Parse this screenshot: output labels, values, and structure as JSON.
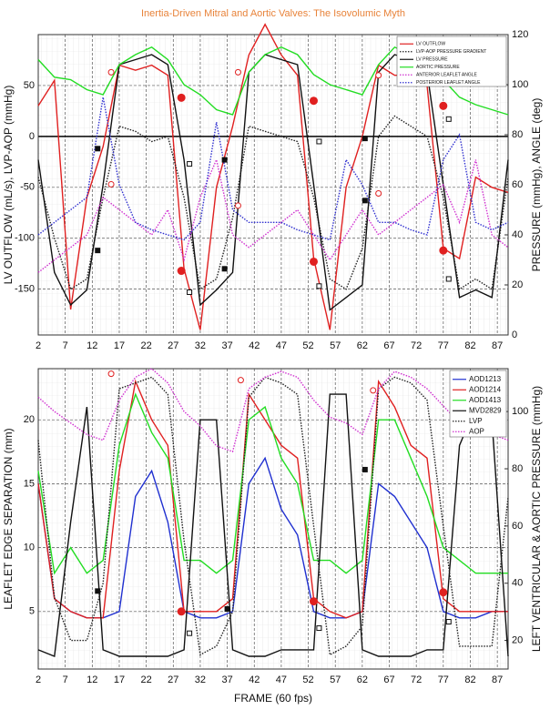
{
  "chart_data": [
    {
      "type": "line",
      "title": "Inertia-Driven Mitral and Aortic Valves: The Isovolumic Myth",
      "ylabel": "LV OUTFLOW (mL/s), LVP-AOP (mmHg)",
      "y2label": "PRESSURE (mmHg),  ANGLE (deg)",
      "xlim": [
        2,
        89
      ],
      "xticks": [
        2,
        7,
        12,
        17,
        22,
        27,
        32,
        37,
        42,
        47,
        52,
        57,
        62,
        67,
        72,
        77,
        82,
        87
      ],
      "ylim": [
        -195,
        100
      ],
      "yticks": [
        -150,
        -100,
        -50,
        0,
        50
      ],
      "y2lim": [
        0,
        120
      ],
      "y2ticks": [
        0,
        20,
        40,
        60,
        80,
        100,
        120
      ],
      "grid": true,
      "legend": "upper right",
      "x": [
        2,
        5,
        8,
        11,
        14,
        17,
        20,
        23,
        26,
        29,
        32,
        35,
        38,
        41,
        44,
        47,
        50,
        53,
        56,
        59,
        62,
        65,
        68,
        71,
        74,
        77,
        80,
        83,
        86,
        89
      ],
      "series": [
        {
          "name": "LV OUTFLOW",
          "color": "#e02020",
          "linestyle": "solid",
          "axis": "y",
          "values": [
            30,
            55,
            -170,
            -60,
            -10,
            70,
            65,
            70,
            60,
            -130,
            -190,
            -50,
            10,
            80,
            110,
            80,
            60,
            -120,
            -190,
            -50,
            0,
            70,
            60,
            60,
            50,
            -110,
            -120,
            -40,
            -50,
            -55
          ]
        },
        {
          "name": "LVP-AOP PRESSURE GRADIENT",
          "color": "#222222",
          "linestyle": "dotted",
          "axis": "y",
          "values": [
            -40,
            -100,
            -150,
            -140,
            -60,
            10,
            5,
            -5,
            0,
            -60,
            -150,
            -140,
            -80,
            10,
            5,
            0,
            -5,
            -60,
            -140,
            -150,
            -110,
            0,
            20,
            10,
            0,
            -60,
            -150,
            -140,
            -150,
            -40
          ]
        },
        {
          "name": "LV PRESSURE",
          "color": "#111111",
          "linestyle": "solid",
          "axis": "y2",
          "values": [
            70,
            25,
            12,
            18,
            60,
            108,
            110,
            112,
            108,
            70,
            12,
            18,
            25,
            105,
            112,
            110,
            108,
            60,
            10,
            15,
            20,
            105,
            112,
            110,
            105,
            60,
            15,
            18,
            15,
            70
          ]
        },
        {
          "name": "AORTIC PRESSURE",
          "color": "#22dd22",
          "linestyle": "solid",
          "axis": "y2",
          "values": [
            110,
            103,
            102,
            98,
            96,
            108,
            112,
            115,
            110,
            100,
            96,
            90,
            88,
            105,
            112,
            115,
            112,
            104,
            100,
            98,
            96,
            108,
            115,
            112,
            108,
            102,
            95,
            92,
            90,
            88
          ]
        },
        {
          "name": "ANTERIOR LEAFLET ANGLE",
          "color": "#d030d0",
          "linestyle": "dotted",
          "axis": "y2",
          "values": [
            25,
            30,
            35,
            40,
            55,
            50,
            45,
            40,
            50,
            30,
            55,
            70,
            40,
            35,
            40,
            45,
            50,
            40,
            30,
            40,
            50,
            40,
            45,
            50,
            55,
            60,
            45,
            70,
            40,
            35
          ]
        },
        {
          "name": "POSTERIOR LEAFLET ANGLE",
          "color": "#3030d0",
          "linestyle": "dotted",
          "axis": "y2",
          "values": [
            40,
            45,
            50,
            55,
            95,
            60,
            45,
            42,
            40,
            38,
            45,
            85,
            50,
            45,
            45,
            45,
            42,
            40,
            38,
            70,
            60,
            45,
            45,
            42,
            40,
            70,
            80,
            45,
            42,
            45
          ]
        }
      ],
      "markers": [
        {
          "shape": "circle",
          "filled": true,
          "color": "#e02020",
          "x": [
            28.5,
            28.5,
            53,
            53,
            77,
            77
          ],
          "values": [
            38,
            -132,
            35,
            -123,
            30,
            -112
          ]
        },
        {
          "shape": "circle",
          "filled": false,
          "color": "#e02020",
          "x": [
            15.5,
            15.5,
            39,
            39,
            65,
            65
          ],
          "values": [
            63,
            -47,
            63,
            -68,
            60,
            -56
          ]
        },
        {
          "shape": "square",
          "filled": true,
          "color": "#111111",
          "x": [
            13,
            13,
            36.5,
            36.5,
            62.5,
            62.5
          ],
          "values": [
            -12,
            -112,
            -23,
            -130,
            -2,
            -63
          ]
        },
        {
          "shape": "square",
          "filled": false,
          "color": "#111111",
          "x": [
            30,
            30,
            54,
            54,
            78,
            78
          ],
          "values": [
            -27,
            -153,
            -5,
            -147,
            17,
            -140
          ]
        }
      ]
    },
    {
      "type": "line",
      "xlabel": "FRAME (60 fps)",
      "ylabel": "LEAFLET EDGE SEPARATION (mm)",
      "y2label": "LEFT VENTRICULAR & AORTIC PRESSURE (mmHg)",
      "xlim": [
        2,
        89
      ],
      "xticks": [
        2,
        7,
        12,
        17,
        22,
        27,
        32,
        37,
        42,
        47,
        52,
        57,
        62,
        67,
        72,
        77,
        82,
        87
      ],
      "ylim": [
        0.5,
        24
      ],
      "yticks": [
        5,
        10,
        15,
        20
      ],
      "y2lim": [
        10,
        115
      ],
      "y2ticks": [
        20,
        40,
        60,
        80,
        100
      ],
      "grid": true,
      "legend": "upper right",
      "x": [
        2,
        5,
        8,
        11,
        14,
        17,
        20,
        23,
        26,
        29,
        32,
        35,
        38,
        41,
        44,
        47,
        50,
        53,
        56,
        59,
        62,
        65,
        68,
        71,
        74,
        77,
        80,
        83,
        86,
        89
      ],
      "series": [
        {
          "name": "AOD1213",
          "color": "#2030d0",
          "linestyle": "solid",
          "axis": "y",
          "values": [
            15,
            6,
            5,
            4.5,
            4.5,
            5,
            14,
            16,
            12,
            5,
            4.5,
            4.5,
            5,
            15,
            17,
            13,
            11,
            5,
            4.5,
            4.5,
            5,
            15,
            14,
            12,
            10,
            5,
            4.5,
            4.5,
            5,
            5
          ]
        },
        {
          "name": "AOD1214",
          "color": "#e02020",
          "linestyle": "solid",
          "axis": "y",
          "values": [
            15,
            6,
            5,
            4.5,
            4.5,
            16,
            23,
            20,
            18,
            5,
            5,
            5,
            6,
            22,
            20,
            18,
            17,
            6,
            5,
            4.5,
            5,
            23,
            21,
            18,
            17,
            6,
            5,
            5,
            5,
            5
          ]
        },
        {
          "name": "AOD1413",
          "color": "#22dd22",
          "linestyle": "solid",
          "axis": "y",
          "values": [
            16,
            8,
            10,
            8,
            9,
            18,
            22,
            19,
            17,
            9,
            9,
            8,
            9,
            20,
            21,
            17,
            15,
            9,
            9,
            8,
            9,
            20,
            20,
            17,
            14,
            10,
            9,
            8,
            8,
            8
          ]
        },
        {
          "name": "MVD2829",
          "color": "#111111",
          "linestyle": "solid",
          "axis": "y",
          "values": [
            2,
            1.5,
            12,
            21,
            2,
            1.5,
            1.5,
            1.5,
            1.5,
            2,
            20,
            20,
            2,
            1.5,
            1.5,
            2,
            2,
            2,
            22,
            22,
            2,
            1.5,
            1.5,
            1.5,
            2,
            2,
            18,
            21,
            20,
            1.5
          ]
        },
        {
          "name": "LVP",
          "color": "#222222",
          "linestyle": "dotted",
          "axis": "y2",
          "values": [
            90,
            35,
            20,
            20,
            40,
            108,
            110,
            112,
            106,
            55,
            15,
            18,
            30,
            105,
            112,
            110,
            106,
            60,
            15,
            18,
            25,
            108,
            112,
            110,
            104,
            60,
            18,
            18,
            18,
            70
          ]
        },
        {
          "name": "AOP",
          "color": "#d030d0",
          "linestyle": "dotted",
          "axis": "y2",
          "values": [
            105,
            100,
            96,
            92,
            90,
            104,
            112,
            115,
            110,
            100,
            95,
            88,
            86,
            108,
            112,
            114,
            112,
            104,
            98,
            96,
            92,
            108,
            114,
            112,
            108,
            102,
            96,
            94,
            92,
            90
          ]
        }
      ],
      "markers": [
        {
          "shape": "circle",
          "filled": false,
          "color": "#e02020",
          "x": [
            15.5,
            39.5,
            64
          ],
          "values": [
            23.6,
            23.1,
            22.3
          ]
        },
        {
          "shape": "circle",
          "filled": true,
          "color": "#e02020",
          "x": [
            28.5,
            53,
            77
          ],
          "values": [
            5,
            5.8,
            6.5
          ]
        },
        {
          "shape": "square",
          "filled": true,
          "color": "#111111",
          "x": [
            13,
            37,
            62.5
          ],
          "values": [
            6.6,
            5.2,
            16.1
          ]
        },
        {
          "shape": "square",
          "filled": false,
          "color": "#111111",
          "x": [
            30,
            54,
            78
          ],
          "values": [
            3.3,
            3.7,
            4.2
          ]
        }
      ]
    }
  ]
}
